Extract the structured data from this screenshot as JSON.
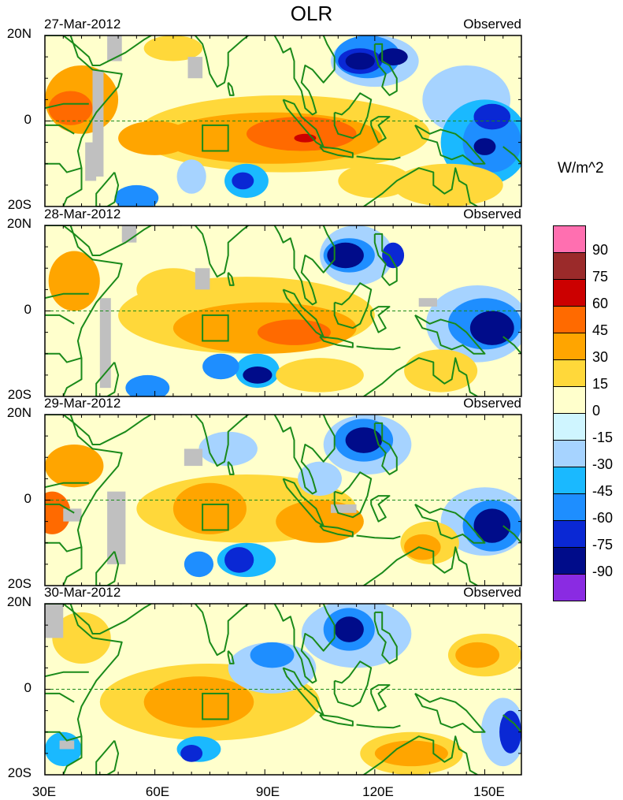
{
  "title": "OLR",
  "units": "W/m^2",
  "panels": [
    {
      "date": "27-Mar-2012",
      "source": "Observed"
    },
    {
      "date": "28-Mar-2012",
      "source": "Observed"
    },
    {
      "date": "29-Mar-2012",
      "source": "Observed"
    },
    {
      "date": "30-Mar-2012",
      "source": "Observed"
    }
  ],
  "lat_labels": {
    "top": "20N",
    "mid": "0",
    "bottom": "20S"
  },
  "lon_labels": [
    "30E",
    "60E",
    "90E",
    "120E",
    "150E"
  ],
  "colorbar": {
    "colors": [
      "#ff6fb0",
      "#9b2a2a",
      "#cc0000",
      "#ff6a00",
      "#ffa500",
      "#ffd83a",
      "#ffffcc",
      "#cff5ff",
      "#a6d3ff",
      "#1ab9ff",
      "#1e8eff",
      "#0a28d4",
      "#000c8a",
      "#8a2be2"
    ],
    "ticks": [
      "90",
      "75",
      "60",
      "45",
      "30",
      "15",
      "0",
      "-15",
      "-30",
      "-45",
      "-60",
      "-75",
      "-90"
    ]
  },
  "colors": {
    "land_outline": "#1a8a1a",
    "box": "#1a8a1a",
    "missing": "#c0c0c0"
  }
}
